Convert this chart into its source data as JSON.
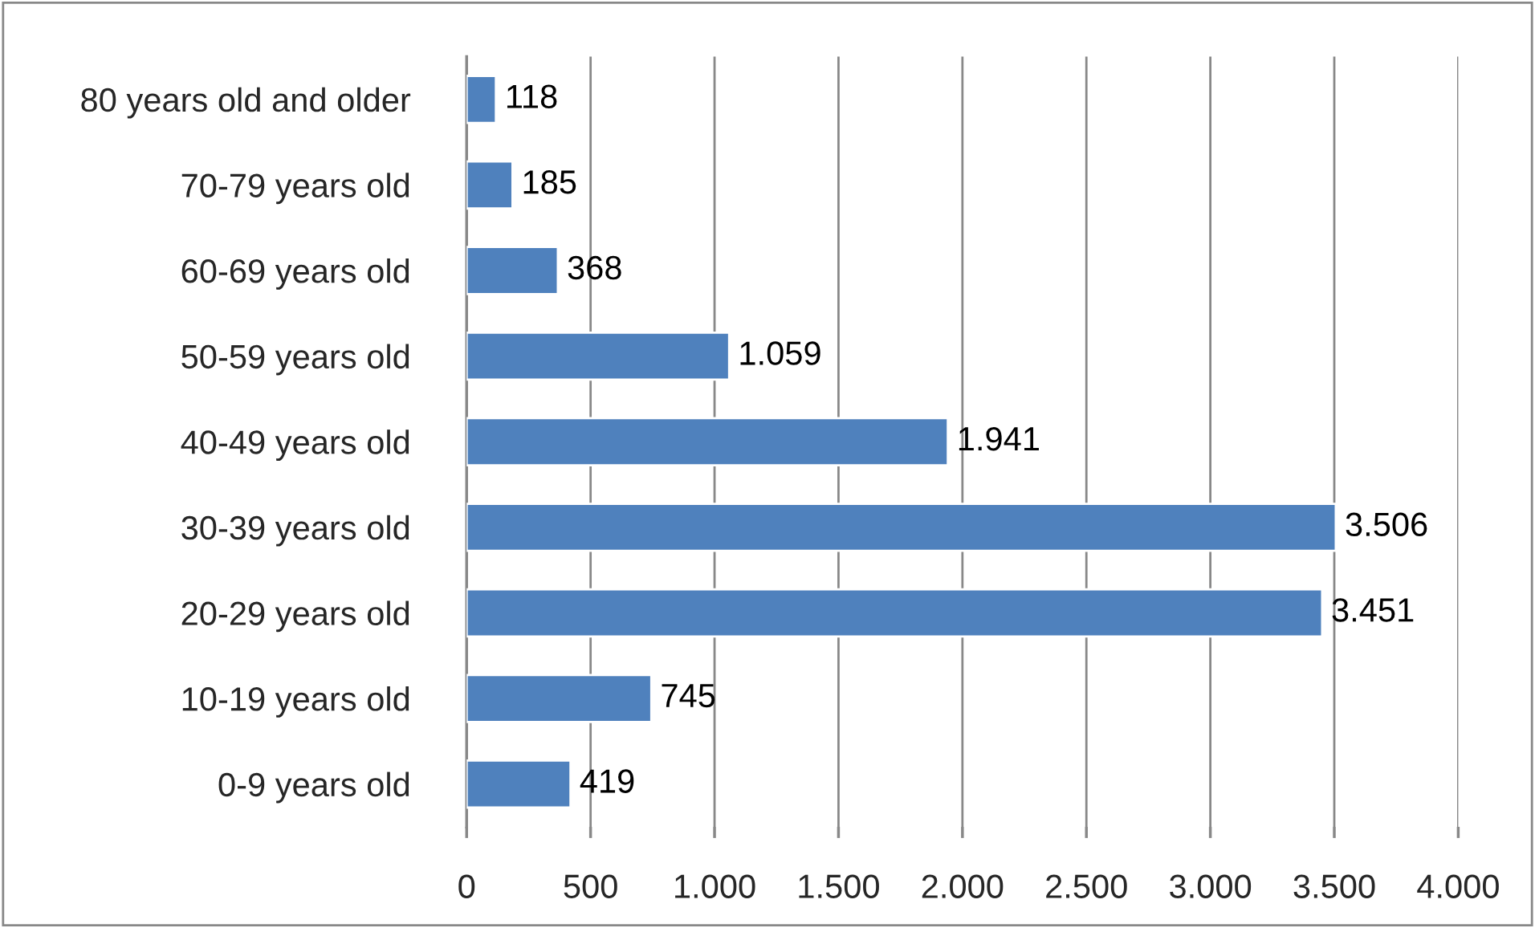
{
  "chart_data": {
    "type": "bar",
    "orientation": "horizontal",
    "categories": [
      "80 years old and older",
      "70-79 years old",
      "60-69 years old",
      "50-59 years old",
      "40-49 years old",
      "30-39 years old",
      "20-29 years old",
      "10-19 years old",
      "0-9 years old"
    ],
    "values": [
      118,
      185,
      368,
      1059,
      1941,
      3506,
      3451,
      745,
      419
    ],
    "value_labels": [
      "118",
      "185",
      "368",
      "1.059",
      "1.941",
      "3.506",
      "3.451",
      "745",
      "419"
    ],
    "color": "#4f81bd",
    "xlim": [
      0,
      4000
    ],
    "xticks": [
      0,
      500,
      {
        "value": 1000,
        "label": "1.000"
      },
      {
        "value": 1500,
        "label": "1.500"
      },
      {
        "value": 2000,
        "label": "2.000"
      },
      {
        "value": 2500,
        "label": "2.500"
      },
      {
        "value": 3000,
        "label": "3.000"
      },
      {
        "value": 3500,
        "label": "3.500"
      },
      {
        "value": 4000,
        "label": "4.000"
      }
    ],
    "grid": "x"
  }
}
